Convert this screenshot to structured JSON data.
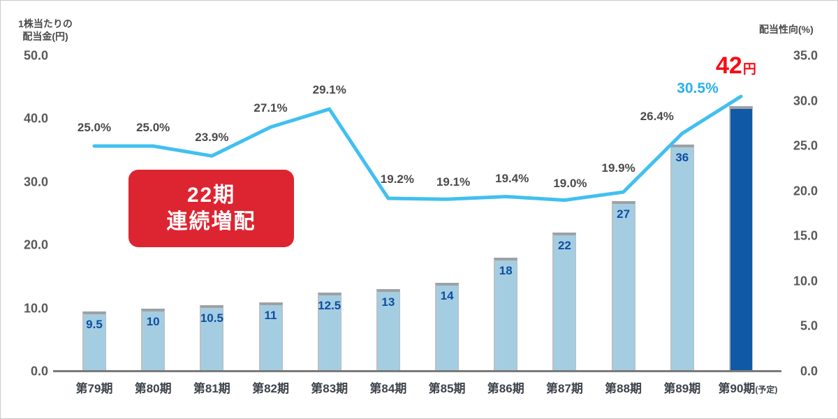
{
  "chart_data": {
    "type": "combo",
    "categories": [
      "第79期",
      "第80期",
      "第81期",
      "第82期",
      "第83期",
      "第84期",
      "第85期",
      "第86期",
      "第87期",
      "第88期",
      "第89期",
      "第90期"
    ],
    "last_category_suffix": "(予定)",
    "series": [
      {
        "name": "1株当たりの配当金",
        "type": "bar",
        "axis": "left",
        "values": [
          9.5,
          10,
          10.5,
          11,
          12.5,
          13,
          14,
          18,
          22,
          27,
          36,
          42
        ],
        "labels": [
          "9.5",
          "10",
          "10.5",
          "11",
          "12.5",
          "13",
          "14",
          "18",
          "22",
          "27",
          "36",
          ""
        ]
      },
      {
        "name": "配当性向",
        "type": "line",
        "axis": "right",
        "values": [
          25.0,
          25.0,
          23.9,
          27.1,
          29.1,
          19.2,
          19.1,
          19.4,
          19.0,
          19.9,
          26.4,
          30.5
        ],
        "labels": [
          "25.0%",
          "25.0%",
          "23.9%",
          "27.1%",
          "29.1%",
          "19.2%",
          "19.1%",
          "19.4%",
          "19.0%",
          "19.9%",
          "26.4%",
          "30.5%"
        ]
      }
    ],
    "left_axis": {
      "title_lines": [
        "1株当たりの",
        "配当金(円)"
      ],
      "min": 0,
      "max": 50,
      "step": 10
    },
    "right_axis": {
      "title": "配当性向(%)",
      "min": 0,
      "max": 35,
      "step": 5
    },
    "grid": false,
    "legend": "none",
    "annotations": {
      "final_dividend_value": "42",
      "final_dividend_unit": "円",
      "badge_lines": [
        "22期",
        "連続増配"
      ]
    },
    "colors": {
      "bar_fill": "#a5cde2",
      "bar_final_fill": "#0f59a6",
      "bar_value_text": "#0d4fa0",
      "line": "#41c0f0",
      "pct_label": "#4a4a4a",
      "pct_label_highlight": "#29b2e8",
      "final_dividend_text": "#fa0a12",
      "badge_bg": "#dd2531",
      "badge_text": "#ffffff",
      "axis_tick_text": "#595959",
      "x_label_text": "#3d434b",
      "axis_line": "#7a7a7a"
    }
  }
}
